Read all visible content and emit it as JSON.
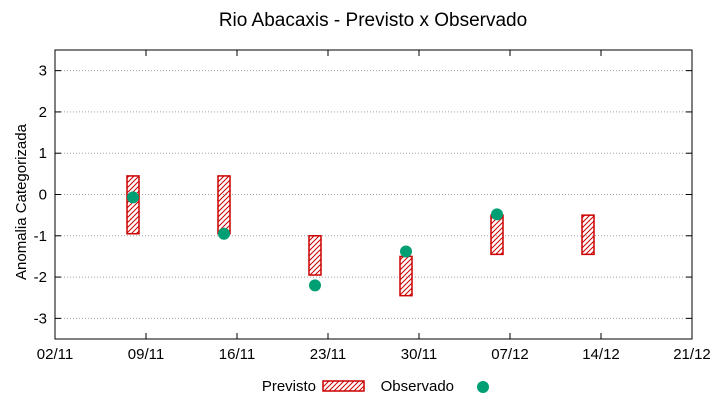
{
  "chart_data": {
    "type": "range-bar-scatter",
    "title": "Rio Abacaxis - Previsto x Observado",
    "xlabel": "",
    "ylabel": "Anomalia Categorizada",
    "ylim": [
      -3.5,
      3.5
    ],
    "yticks": [
      "-3",
      "-2",
      "-1",
      "0",
      "1",
      "2",
      "3"
    ],
    "ytick_values": [
      -3,
      -2,
      -1,
      0,
      1,
      2,
      3
    ],
    "xlim": [
      "02/11",
      "21/12"
    ],
    "xticks": [
      "02/11",
      "09/11",
      "16/11",
      "23/11",
      "30/11",
      "07/12",
      "14/12",
      "21/12"
    ],
    "grid": true,
    "legend_position": "bottom",
    "series": [
      {
        "name": "Previsto",
        "kind": "range",
        "color": "#cc0000",
        "points": [
          {
            "x": "08/11",
            "low": -0.95,
            "high": 0.45
          },
          {
            "x": "15/11",
            "low": -0.95,
            "high": 0.45
          },
          {
            "x": "22/11",
            "low": -1.95,
            "high": -1.0
          },
          {
            "x": "29/11",
            "low": -2.45,
            "high": -1.5
          },
          {
            "x": "06/12",
            "low": -1.45,
            "high": -0.5
          },
          {
            "x": "13/12",
            "low": -1.45,
            "high": -0.5
          }
        ]
      },
      {
        "name": "Observado",
        "kind": "point",
        "color": "#009e73",
        "points": [
          {
            "x": "08/11",
            "y": -0.07
          },
          {
            "x": "15/11",
            "y": -0.95
          },
          {
            "x": "22/11",
            "y": -2.2
          },
          {
            "x": "29/11",
            "y": -1.38
          },
          {
            "x": "06/12",
            "y": -0.48
          }
        ]
      }
    ]
  }
}
